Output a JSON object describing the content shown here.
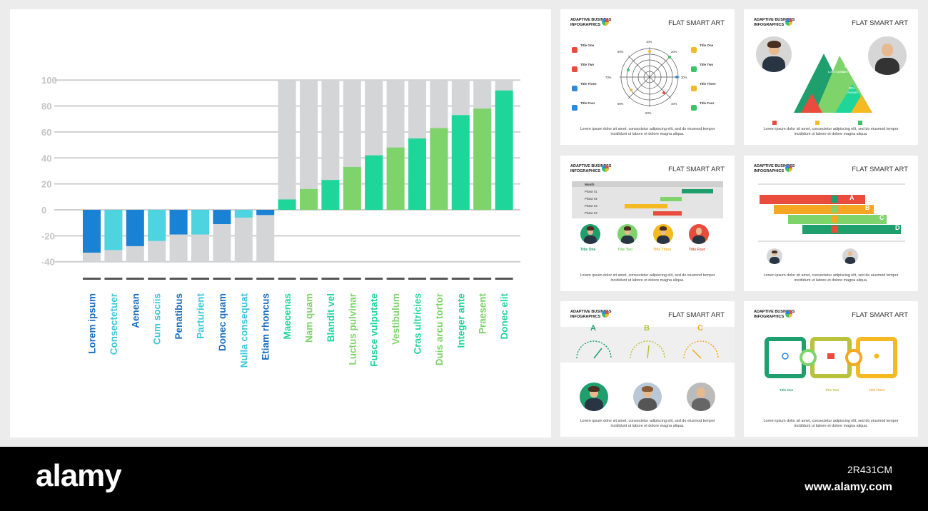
{
  "chart_data": {
    "type": "bar",
    "stacked_with_background": true,
    "categories": [
      "Lorem ipsum",
      "Consectetuer",
      "Aenean",
      "Cum sociis",
      "Penatibus",
      "Parturient",
      "Donec quam",
      "Nulla consequat",
      "Etiam rhoncus",
      "Maecenas",
      "Nam quam",
      "Blandit vel",
      "Luctus pulvinar",
      "Fusce vulputate",
      "Vestibulum",
      "Cras ultricies",
      "Duis arcu tortor",
      "Integer ante",
      "Praesent",
      "Donec elit"
    ],
    "values": [
      -33,
      -31,
      -28,
      -24,
      -19,
      -19,
      -11,
      -6,
      -4,
      8,
      16,
      23,
      33,
      42,
      48,
      55,
      63,
      73,
      78,
      92
    ],
    "background_values": [
      -40,
      -40,
      -40,
      -40,
      -40,
      -40,
      -40,
      -40,
      -40,
      100,
      100,
      100,
      100,
      100,
      100,
      100,
      100,
      100,
      100,
      100
    ],
    "bar_colors": [
      "#1a82d4",
      "#4dd4e0",
      "#1a82d4",
      "#4dd4e0",
      "#1a82d4",
      "#4dd4e0",
      "#1a82d4",
      "#4dd4e0",
      "#1a82d4",
      "#1fd69a",
      "#7ed36b",
      "#1fd69a",
      "#7ed36b",
      "#1fd69a",
      "#7ed36b",
      "#1fd69a",
      "#7ed36b",
      "#1fd69a",
      "#7ed36b",
      "#1fd69a"
    ],
    "label_colors": [
      "#1a6fc0",
      "#3cc8d8",
      "#1a6fc0",
      "#3cc8d8",
      "#1a6fc0",
      "#3cc8d8",
      "#1a6fc0",
      "#3cc8d8",
      "#1a6fc0",
      "#1fd69a",
      "#7ed36b",
      "#1fd69a",
      "#7ed36b",
      "#1fd69a",
      "#7ed36b",
      "#1fd69a",
      "#7ed36b",
      "#1fd69a",
      "#7ed36b",
      "#1fd69a"
    ],
    "background_color": "#d4d5d6",
    "yticks": [
      100,
      80,
      60,
      40,
      20,
      0,
      -20,
      -40
    ],
    "ylim": [
      -40,
      100
    ],
    "grid": true,
    "xlabel": "",
    "ylabel": ""
  },
  "thumbnails": {
    "brand_line1": "ADAPTIVE BUSINESS",
    "brand_line2": "INFOGRAPHICS",
    "slide_title": "FLAT SMART ART",
    "caption_line1": "Lorem ipsum dolor sit amet, consectetur adipiscing elit, sed do eiusmod tempor",
    "caption_line2": "incididunt ut labore et dolore magna aliqua.",
    "radar": {
      "left_items": [
        "Title One",
        "Title Two",
        "Title Three",
        "Title Four"
      ],
      "right_items": [
        "Title One",
        "Title Two",
        "Title Three",
        "Title Four"
      ],
      "percent_labels": [
        "10%",
        "20%",
        "30%",
        "40%",
        "50%",
        "60%",
        "70%",
        "80%"
      ]
    },
    "pyramid": {
      "labels": [
        "97%",
        "82%",
        "Lorem ipsum",
        "Cum sociis",
        "85%",
        "Aenean"
      ]
    },
    "gantt": {
      "header": [
        "Month",
        "JAN",
        "FEB",
        "MAR",
        "APR",
        "MAY",
        "JUN",
        "JUL",
        "AUG",
        "SEP",
        "OCT",
        "NOV",
        "DEC"
      ],
      "phases": [
        "Phase 01",
        "Phase 02",
        "Phase 03",
        "Phase 04"
      ],
      "people": [
        "Title One",
        "Title Two",
        "Title Three",
        "Title Four"
      ]
    },
    "steps": {
      "letters": [
        "A",
        "B",
        "C",
        "D"
      ]
    },
    "gauges": {
      "letters": [
        "A",
        "B",
        "C"
      ]
    },
    "puzzle": {
      "titles": [
        "Title One",
        "Title Two",
        "Title Three"
      ]
    }
  },
  "footer": {
    "brand": "alamy",
    "image_code": "2R431CM",
    "url": "www.alamy.com"
  }
}
